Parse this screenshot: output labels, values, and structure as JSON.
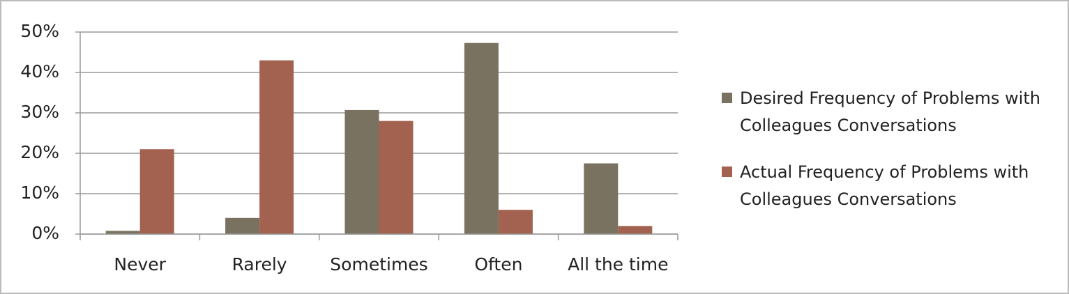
{
  "chart_data": {
    "type": "bar",
    "categories": [
      "Never",
      "Rarely",
      "Sometimes",
      "Often",
      "All the time"
    ],
    "series": [
      {
        "name": "Desired Frequency of Problems with Colleagues Conversations",
        "color": "#7a7260",
        "values": [
          0.8,
          4,
          30.7,
          47.3,
          17.5
        ]
      },
      {
        "name": "Actual Frequency of Problems with Colleagues Conversations",
        "color": "#a3624f",
        "values": [
          21,
          43,
          28,
          6,
          2
        ]
      }
    ],
    "ylim": [
      0,
      50
    ],
    "yticks": [
      {
        "value": 0,
        "label": "0%"
      },
      {
        "value": 10,
        "label": "10%"
      },
      {
        "value": 20,
        "label": "20%"
      },
      {
        "value": 30,
        "label": "30%"
      },
      {
        "value": 40,
        "label": "40%"
      },
      {
        "value": 50,
        "label": "50%"
      }
    ],
    "grid": true,
    "legend": "right"
  }
}
